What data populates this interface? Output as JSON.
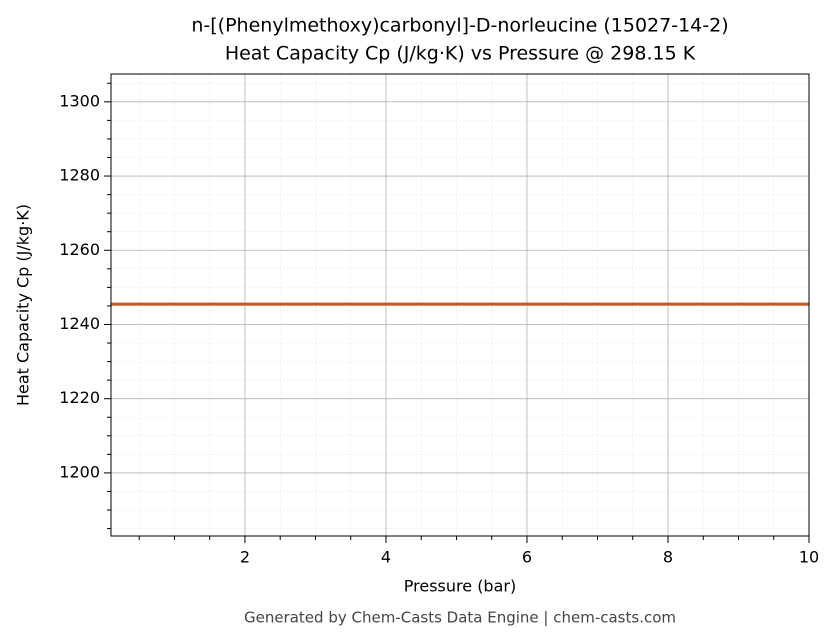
{
  "chart_data": {
    "type": "line",
    "title": "n-[(Phenylmethoxy)carbonyl]-D-norleucine (15027-14-2)",
    "subtitle": "Heat Capacity Cp (J/kg·K) vs Pressure @ 298.15 K",
    "x_label": "Pressure (bar)",
    "y_label": "Heat Capacity Cp (J/kg·K)",
    "footer": "Generated by Chem-Casts Data Engine | chem-casts.com",
    "x": [
      0.1,
      10
    ],
    "series": [
      {
        "name": "Cp",
        "color": "#c4562a",
        "values": [
          1245.5,
          1245.5
        ]
      }
    ],
    "xlim": [
      0.1,
      10
    ],
    "ylim": [
      1183,
      1307.5
    ],
    "xticks": [
      2,
      4,
      6,
      8,
      10
    ],
    "yticks": [
      1200,
      1220,
      1240,
      1260,
      1280,
      1300
    ],
    "xminorticks": [
      0.5,
      1,
      1.5,
      2.5,
      3,
      3.5,
      4.5,
      5,
      5.5,
      6.5,
      7,
      7.5,
      8.5,
      9,
      9.5
    ],
    "yminorticks": [
      1185,
      1190,
      1195,
      1205,
      1210,
      1215,
      1225,
      1230,
      1235,
      1245,
      1250,
      1255,
      1265,
      1270,
      1275,
      1285,
      1290,
      1295,
      1305
    ],
    "grid": true,
    "minor_grid": true
  }
}
